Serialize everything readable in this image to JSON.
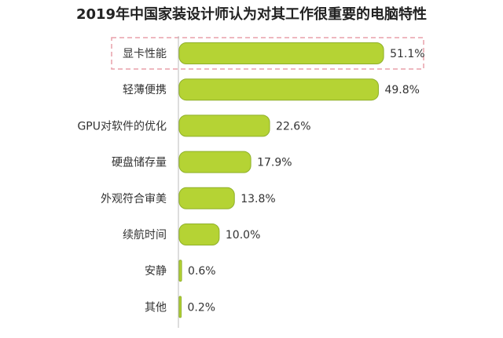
{
  "chart_data": {
    "type": "bar",
    "orientation": "horizontal",
    "title": "2019年中国家装设计师认为对其工作很重要的电脑特性",
    "categories": [
      "显卡性能",
      "轻薄便携",
      "GPU对软件的优化",
      "硬盘储存量",
      "外观符合审美",
      "续航时间",
      "安静",
      "其他"
    ],
    "values": [
      51.1,
      49.8,
      22.6,
      17.9,
      13.8,
      10.0,
      0.6,
      0.2
    ],
    "value_labels": [
      "51.1%",
      "49.8%",
      "22.6%",
      "17.9%",
      "13.8%",
      "10.0%",
      "0.6%",
      "0.2%"
    ],
    "xlim": [
      0,
      60
    ],
    "grid": false,
    "legend": "none",
    "highlighted_category": "显卡性能",
    "colors": {
      "bar_fill": "#b5d334",
      "bar_stroke": "#8fb02a",
      "highlight_box": "#e8a0aa",
      "axis": "#bbbbbb"
    }
  }
}
